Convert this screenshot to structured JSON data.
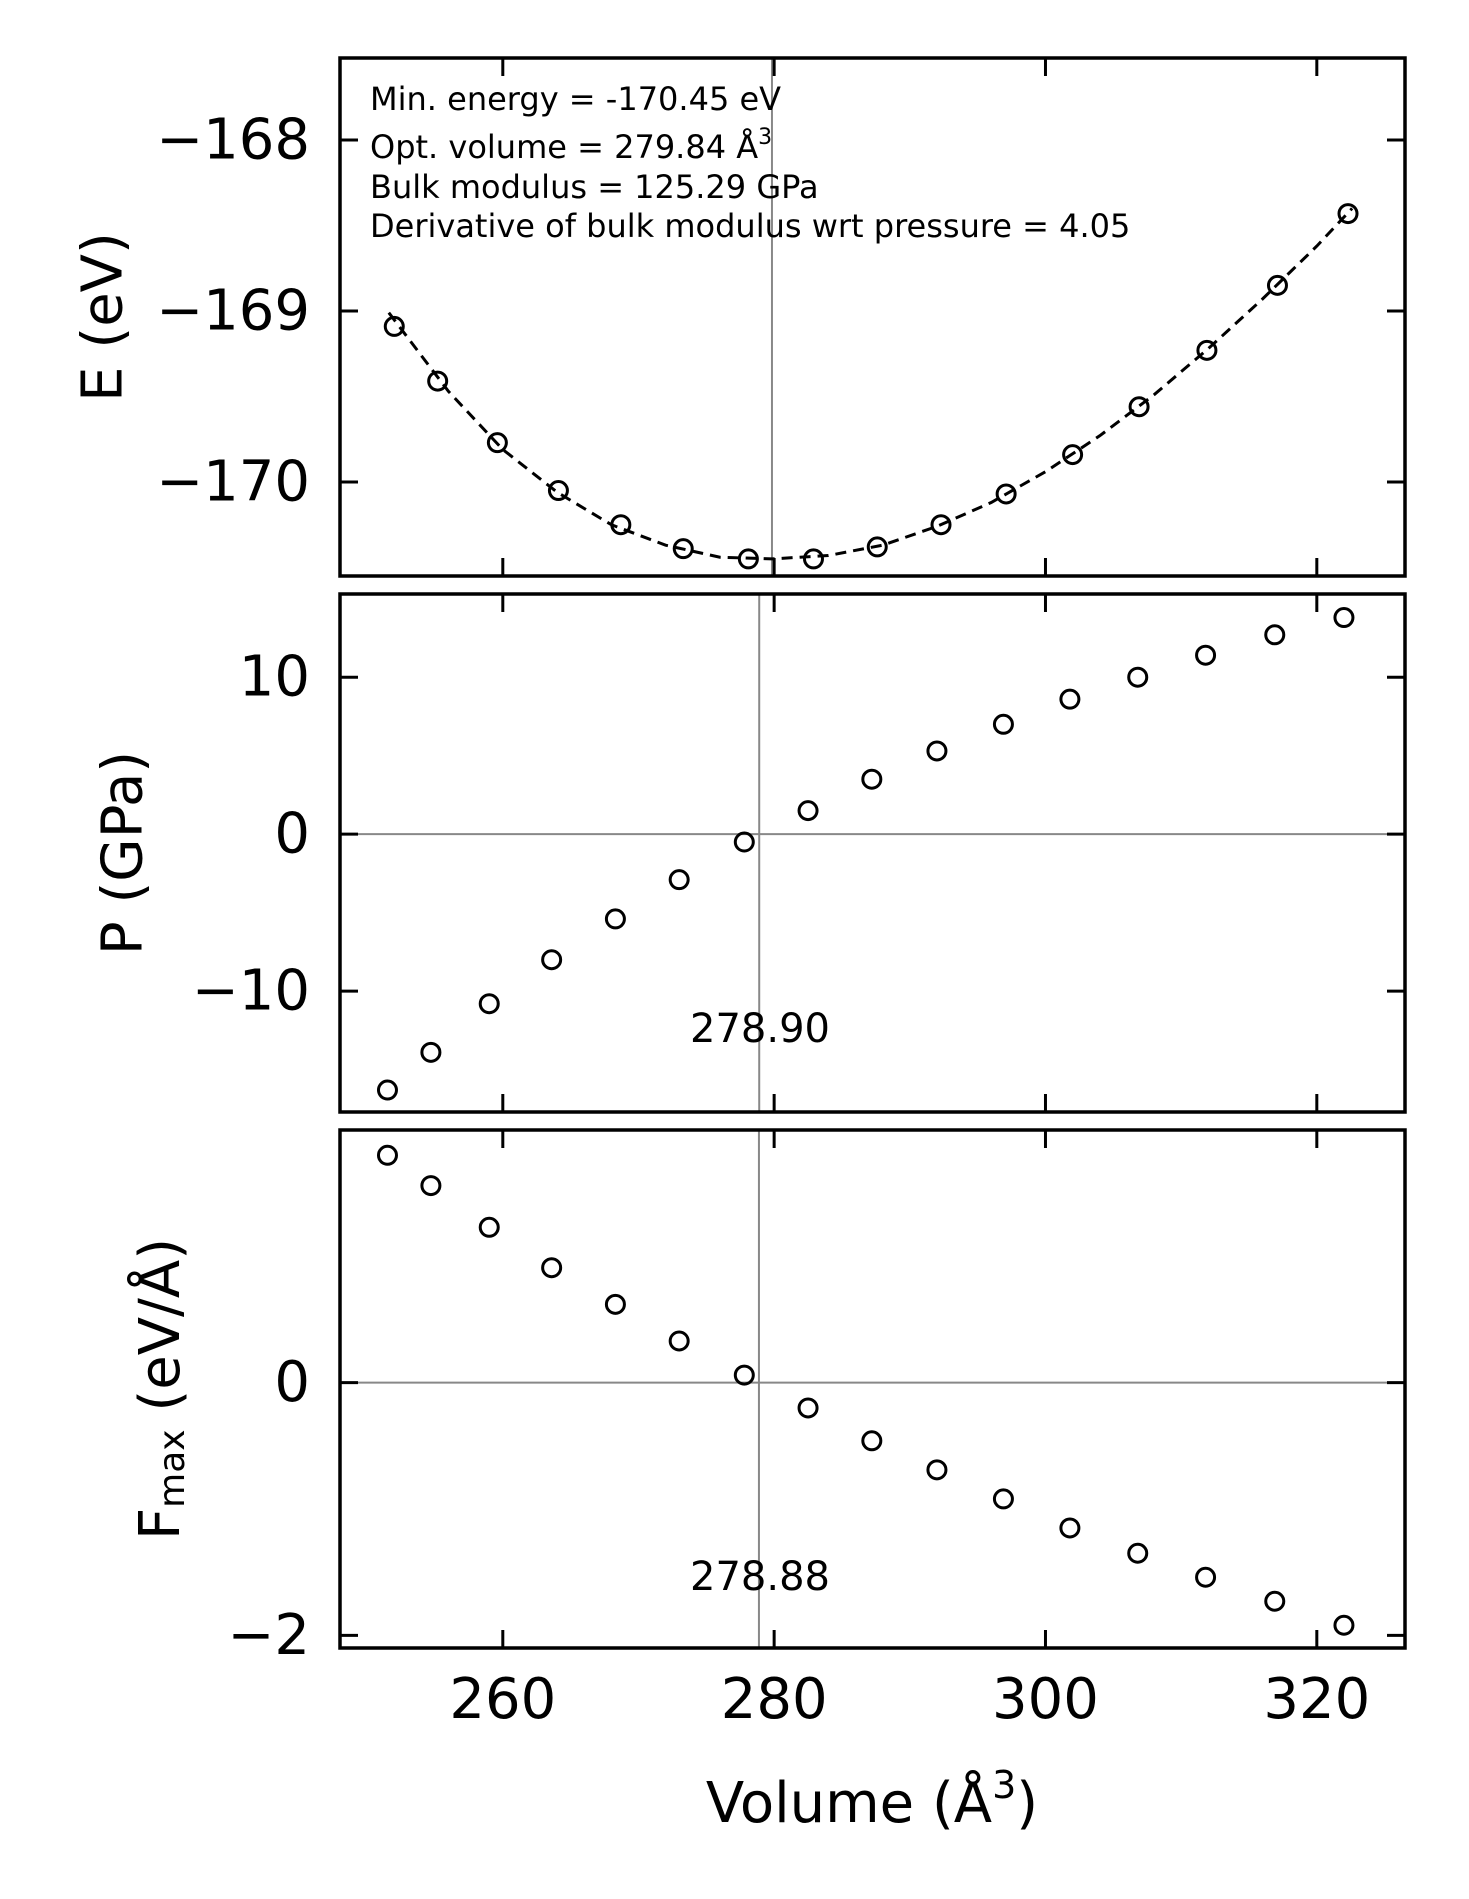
{
  "chart_data": [
    {
      "type": "scatter",
      "id": "energy",
      "ylabel": "E (eV)",
      "ylim": [
        -170.55,
        -167.52
      ],
      "yticks": [
        -168,
        -169,
        -170
      ],
      "yticklabels": [
        "−168",
        "−169",
        "−170"
      ],
      "xlim": [
        248,
        326.5
      ],
      "xticks": [
        260,
        280,
        300,
        320
      ],
      "vline": 279.84,
      "series": [
        {
          "kind": "points",
          "x": [
            252.0,
            255.2,
            259.6,
            264.1,
            268.7,
            273.3,
            278.1,
            282.9,
            287.6,
            292.3,
            297.1,
            302.0,
            306.9,
            311.9,
            317.1,
            322.3
          ],
          "y": [
            -169.09,
            -169.41,
            -169.77,
            -170.05,
            -170.25,
            -170.39,
            -170.45,
            -170.45,
            -170.38,
            -170.25,
            -170.07,
            -169.84,
            -169.56,
            -169.23,
            -168.85,
            -168.43
          ]
        },
        {
          "kind": "fit-dashed",
          "x": [
            251.6,
            256,
            260,
            264,
            268,
            272,
            276,
            279.84,
            284,
            288,
            292,
            296,
            300,
            304,
            308,
            312,
            316,
            320,
            322.6
          ],
          "y": [
            -169.01,
            -169.47,
            -169.81,
            -170.06,
            -170.25,
            -170.37,
            -170.44,
            -170.45,
            -170.43,
            -170.37,
            -170.26,
            -170.12,
            -169.94,
            -169.73,
            -169.49,
            -169.22,
            -168.93,
            -168.62,
            -168.4
          ]
        }
      ],
      "annotations": [
        "Min. energy = -170.45 eV",
        "Opt. volume = 279.84 Å",
        "Bulk modulus = 125.29 GPa",
        "Derivative of bulk modulus wrt pressure = 4.05"
      ],
      "annotation_superscript": "3"
    },
    {
      "type": "scatter",
      "id": "pressure",
      "ylabel": "P (GPa)",
      "ylim": [
        -17.7,
        15.3
      ],
      "yticks": [
        10,
        0,
        -10
      ],
      "yticklabels": [
        "10",
        "0",
        "−10"
      ],
      "xlim": [
        248,
        326.5
      ],
      "xticks": [
        260,
        280,
        300,
        320
      ],
      "vline": 278.9,
      "hline": 0,
      "vline_label": "278.90",
      "series": [
        {
          "kind": "points",
          "x": [
            251.5,
            254.7,
            259.0,
            263.6,
            268.3,
            273.0,
            277.8,
            282.5,
            287.2,
            292.0,
            296.9,
            301.8,
            306.8,
            311.8,
            316.9,
            322.0
          ],
          "y": [
            -16.3,
            -13.9,
            -10.8,
            -8.0,
            -5.4,
            -2.9,
            -0.5,
            1.5,
            3.5,
            5.3,
            7.0,
            8.6,
            10.0,
            11.4,
            12.7,
            13.8
          ]
        }
      ]
    },
    {
      "type": "scatter",
      "id": "force",
      "ylabel": "F",
      "ylabel_sub": "max",
      "ylabel_unit": " (eV/Å)",
      "ylim": [
        -2.1,
        2.0
      ],
      "yticks": [
        0,
        -2
      ],
      "yticklabels": [
        "0",
        "−2"
      ],
      "xlim": [
        248,
        326.5
      ],
      "xticks": [
        260,
        280,
        300,
        320
      ],
      "xticklabels": [
        "260",
        "280",
        "300",
        "320"
      ],
      "xlabel": "Volume (Å",
      "xlabel_sup": "3",
      "xlabel_end": ")",
      "vline": 278.88,
      "hline": 0,
      "vline_label": "278.88",
      "series": [
        {
          "kind": "points",
          "x": [
            251.5,
            254.7,
            259.0,
            263.6,
            268.3,
            273.0,
            277.8,
            282.5,
            287.2,
            292.0,
            296.9,
            301.8,
            306.8,
            311.8,
            316.9,
            322.0
          ],
          "y": [
            1.8,
            1.56,
            1.23,
            0.91,
            0.62,
            0.33,
            0.06,
            -0.2,
            -0.46,
            -0.69,
            -0.92,
            -1.15,
            -1.35,
            -1.54,
            -1.73,
            -1.92
          ]
        }
      ]
    }
  ]
}
